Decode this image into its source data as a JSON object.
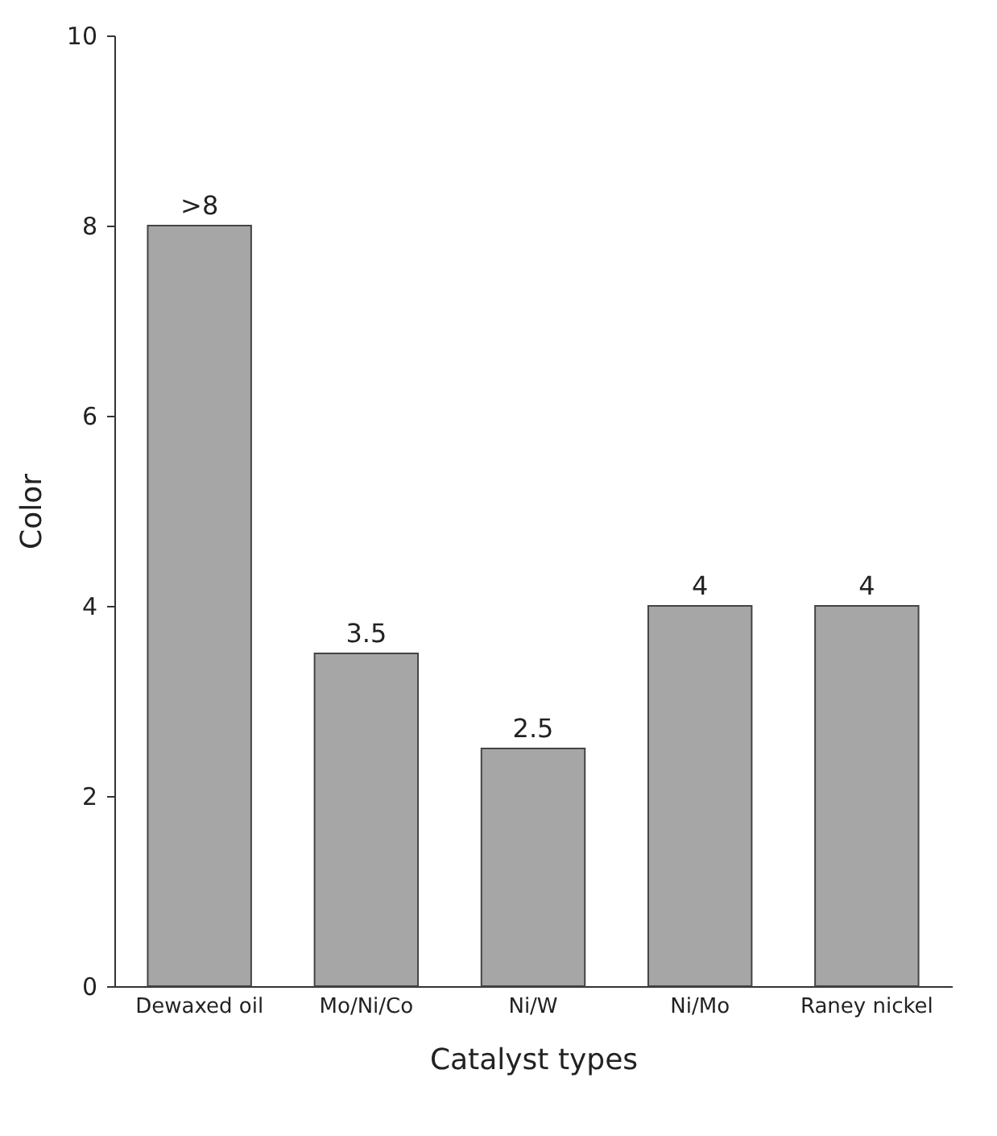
{
  "chart_data": {
    "type": "bar",
    "xlabel": "Catalyst types",
    "ylabel": "Color",
    "categories": [
      "Dewaxed oil",
      "Mo/Ni/Co",
      "Ni/W",
      "Ni/Mo",
      "Raney nickel"
    ],
    "values": [
      8,
      3.5,
      2.5,
      4,
      4
    ],
    "value_labels": [
      ">8",
      "3.5",
      "2.5",
      "4",
      "4"
    ],
    "color": "#a6a6a6",
    "ylim": [
      0,
      10
    ],
    "yticks": [
      0,
      2,
      4,
      6,
      8,
      10
    ],
    "grid": false
  }
}
